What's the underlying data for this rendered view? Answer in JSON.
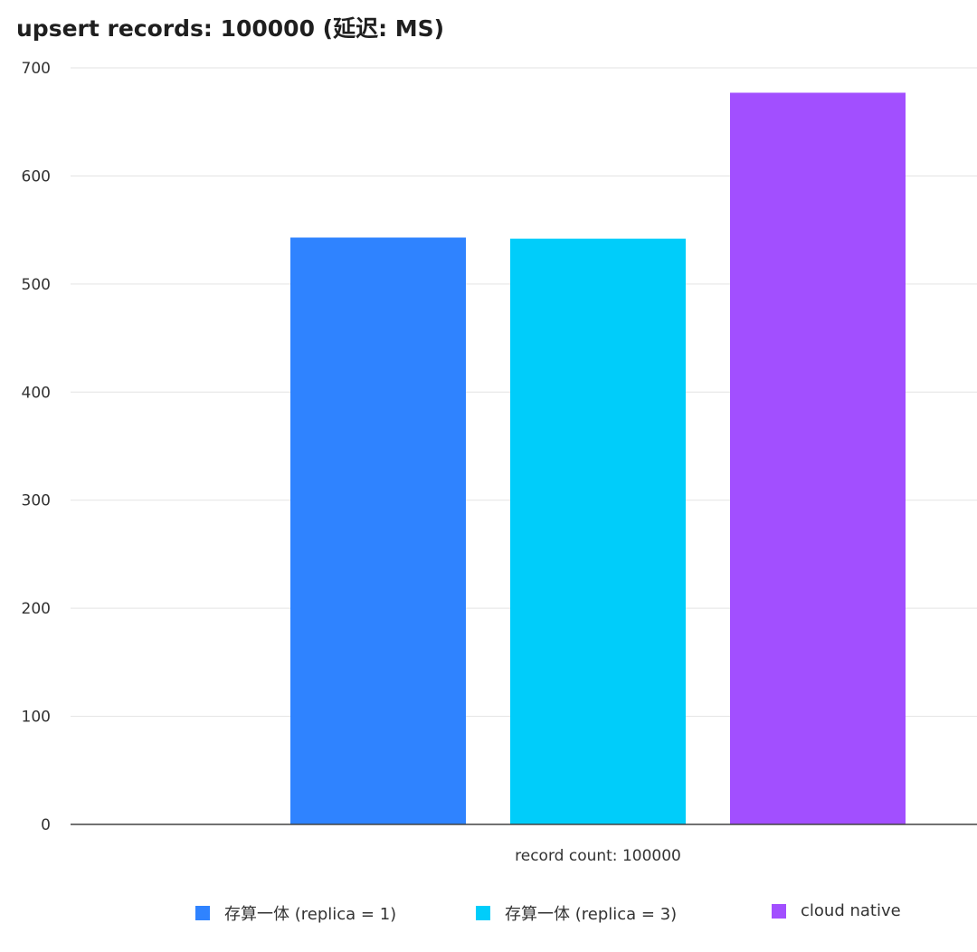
{
  "chart_data": {
    "type": "bar",
    "title": "upsert records: 100000 (延迟: MS)",
    "categories": [
      "record count: 100000"
    ],
    "series": [
      {
        "name": "存算一体 (replica = 1)",
        "values": [
          543
        ],
        "color": "#2f83ff"
      },
      {
        "name": "存算一体 (replica = 3)",
        "values": [
          542
        ],
        "color": "#00cdfa"
      },
      {
        "name": "cloud native",
        "values": [
          677
        ],
        "color": "#a24fff"
      }
    ],
    "yticks": [
      "0",
      "100",
      "200",
      "300",
      "400",
      "500",
      "600",
      "700"
    ],
    "ylim": [
      0,
      700
    ],
    "grid": true,
    "legend_position": "bottom"
  }
}
